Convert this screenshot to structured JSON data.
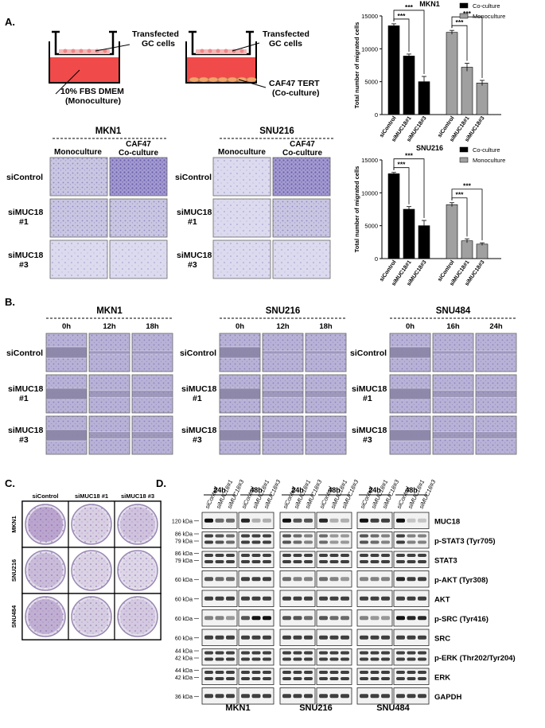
{
  "panels": {
    "a": "A.",
    "b": "B.",
    "c": "C.",
    "d": "D."
  },
  "panel_a": {
    "diagram": {
      "label_gc_1": "Transfected",
      "label_gc_2": "GC cells",
      "label_gc_b1": "Transfected",
      "label_gc_b2": "GC cells",
      "label_medium_1": "10% FBS DMEM",
      "label_medium_2": "(Monoculture)",
      "label_caf_1": "CAF47 TERT",
      "label_caf_2": "(Co-culture)"
    },
    "images": {
      "mkn1_title": "MKN1",
      "snu216_title": "SNU216",
      "col_mono": "Monoculture",
      "col_caf_1": "CAF47",
      "col_caf_2": "Co-culture",
      "row_1": "siControl",
      "row_2a": "siMUC18",
      "row_2b": "#1",
      "row_3a": "siMUC18",
      "row_3b": "#3"
    }
  },
  "panel_b": {
    "lines": [
      {
        "title": "MKN1",
        "times": [
          "0h",
          "12h",
          "18h"
        ]
      },
      {
        "title": "SNU216",
        "times": [
          "0h",
          "12h",
          "18h"
        ]
      },
      {
        "title": "SNU484",
        "times": [
          "0h",
          "16h",
          "24h"
        ]
      }
    ],
    "row_1": "siControl",
    "row_2a": "siMUC18",
    "row_2b": "#1",
    "row_3a": "siMUC18",
    "row_3b": "#3"
  },
  "panel_c": {
    "cols": [
      "siControl",
      "siMUC18 #1",
      "siMUC18 #3"
    ],
    "rows": [
      "MKN1",
      "SNU216",
      "SNU484"
    ]
  },
  "panel_d": {
    "times": [
      "24h",
      "48h"
    ],
    "lanes": [
      "siControl",
      "siMUC18#1",
      "siMUC18#3"
    ],
    "cells": [
      "MKN1",
      "SNU216",
      "SNU484"
    ],
    "blots": [
      {
        "label": "MUC18",
        "kda": [
          "120 kDa"
        ]
      },
      {
        "label": "p-STAT3 (Tyr705)",
        "kda": [
          "86 kDa",
          "79 kDa"
        ]
      },
      {
        "label": "STAT3",
        "kda": [
          "86 kDa",
          "79 kDa"
        ]
      },
      {
        "label": "p-AKT (Tyr308)",
        "kda": [
          "60 kDa"
        ]
      },
      {
        "label": "AKT",
        "kda": [
          "60 kDa"
        ]
      },
      {
        "label": "p-SRC (Tyr416)",
        "kda": [
          "60 kDa"
        ]
      },
      {
        "label": "SRC",
        "kda": [
          "60 kDa"
        ]
      },
      {
        "label": "p-ERK (Thr202/Tyr204)",
        "kda": [
          "44 kDa",
          "42 kDa"
        ]
      },
      {
        "label": "ERK",
        "kda": [
          "44 kDa",
          "42 kDa"
        ]
      },
      {
        "label": "GAPDH",
        "kda": [
          "36 kDa"
        ]
      }
    ]
  },
  "chart_data": [
    {
      "type": "bar",
      "title": "MKN1",
      "ylabel": "Total number of migrated cells",
      "ylim": [
        0,
        15000
      ],
      "yticks": [
        "0",
        "5000",
        "10000",
        "15000"
      ],
      "categories": [
        "siControl",
        "siMUC18#1",
        "siMUC18#3"
      ],
      "series": [
        {
          "name": "Co-culture",
          "color": "#000000",
          "values": [
            13500,
            8900,
            5000
          ],
          "errors": [
            300,
            300,
            800
          ]
        },
        {
          "name": "Monoculture",
          "color": "#a0a0a0",
          "values": [
            12500,
            7200,
            4800
          ],
          "errors": [
            300,
            600,
            400
          ]
        }
      ],
      "significance": [
        "***",
        "***",
        "***",
        "***"
      ],
      "legend": "top-right"
    },
    {
      "type": "bar",
      "title": "SNU216",
      "ylabel": "Total number of migrated cells",
      "ylim": [
        0,
        15000
      ],
      "yticks": [
        "0",
        "5000",
        "10000",
        "15000"
      ],
      "categories": [
        "siControl",
        "siMUC18#1",
        "siMUC18#3"
      ],
      "series": [
        {
          "name": "Co-culture",
          "color": "#000000",
          "values": [
            12900,
            7500,
            5000
          ],
          "errors": [
            200,
            400,
            800
          ]
        },
        {
          "name": "Monoculture",
          "color": "#a0a0a0",
          "values": [
            8200,
            2700,
            2200
          ],
          "errors": [
            300,
            300,
            200
          ]
        }
      ],
      "significance": [
        "***",
        "***",
        "***",
        "***"
      ],
      "legend": "top-right"
    }
  ]
}
